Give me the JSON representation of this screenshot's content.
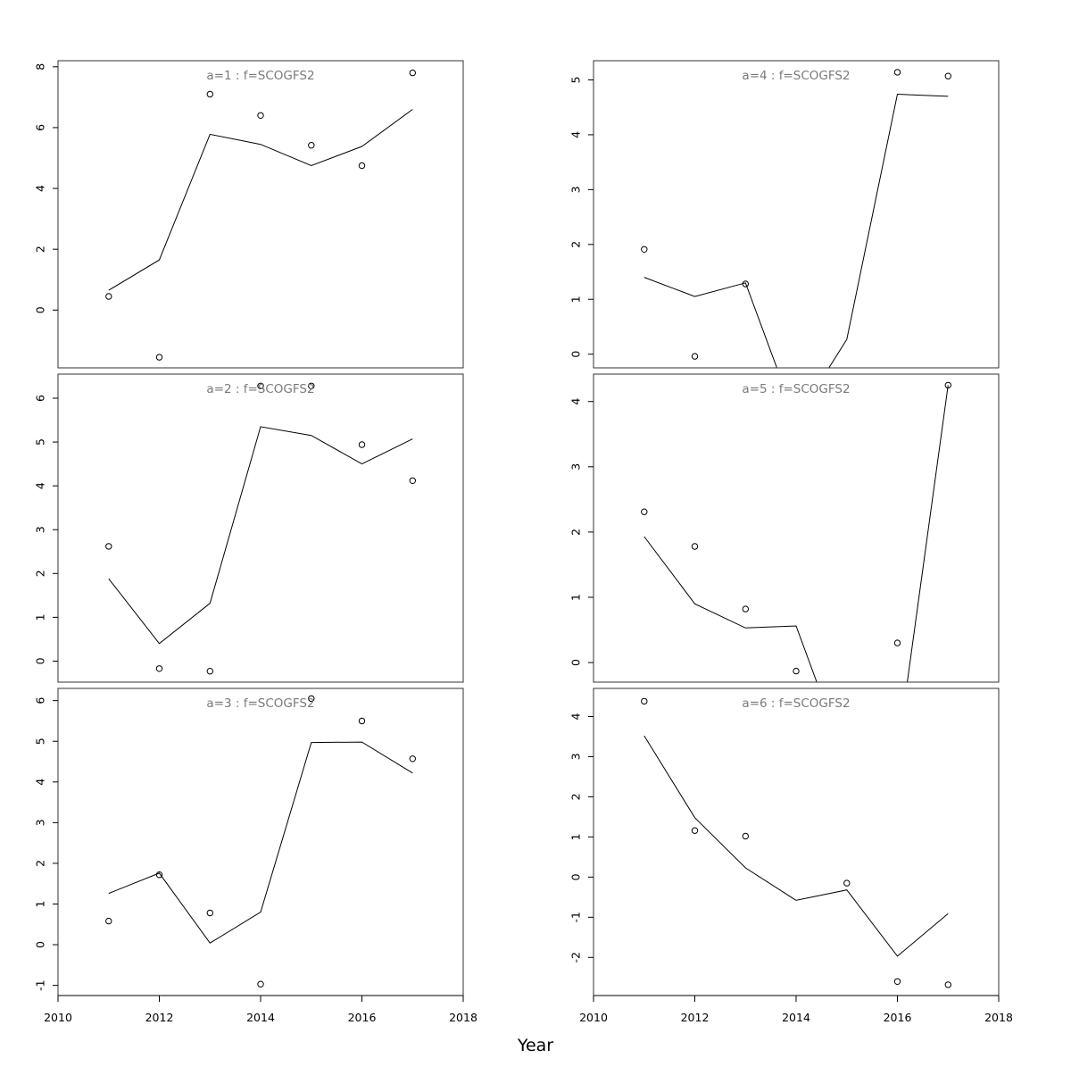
{
  "figure": {
    "xlabel": "Year"
  },
  "chart_data": [
    {
      "type": "line",
      "panel": "a=1",
      "title": "a=1 : f=SCOGFS2",
      "xlim": [
        2010,
        2018
      ],
      "xticks": [
        2010,
        2012,
        2014,
        2016,
        2018
      ],
      "ylim": [
        -1.9,
        8.2
      ],
      "yticks": [
        0,
        2,
        4,
        6,
        8
      ],
      "ytick_labels": [
        "0",
        "2",
        "4",
        "6",
        "8"
      ],
      "fitted": {
        "x": [
          2011,
          2012,
          2013,
          2014,
          2015,
          2016,
          2017
        ],
        "y": [
          0.65,
          1.65,
          5.78,
          5.45,
          4.75,
          5.38,
          6.6
        ]
      },
      "observed": {
        "x": [
          2011,
          2012,
          2013,
          2014,
          2015,
          2016,
          2017
        ],
        "y": [
          0.45,
          -1.55,
          7.1,
          6.4,
          5.42,
          4.75,
          7.8
        ]
      }
    },
    {
      "type": "line",
      "panel": "a=2",
      "title": "a=2 : f=SCOGFS2",
      "xlim": [
        2010,
        2018
      ],
      "xticks": [
        2010,
        2012,
        2014,
        2016,
        2018
      ],
      "ylim": [
        -0.48,
        6.55
      ],
      "yticks": [
        0,
        1,
        2,
        3,
        4,
        5,
        6
      ],
      "ytick_labels": [
        "0",
        "1",
        "2",
        "3",
        "4",
        "5",
        "6"
      ],
      "fitted": {
        "x": [
          2011,
          2012,
          2013,
          2014,
          2015,
          2016,
          2017
        ],
        "y": [
          1.88,
          0.4,
          1.32,
          5.35,
          5.15,
          4.5,
          5.07
        ]
      },
      "observed": {
        "x": [
          2011,
          2012,
          2013,
          2014,
          2015,
          2016,
          2017
        ],
        "y": [
          2.62,
          -0.17,
          -0.23,
          6.28,
          6.28,
          4.94,
          4.12
        ]
      }
    },
    {
      "type": "line",
      "panel": "a=3",
      "title": "a=3 : f=SCOGFS2",
      "xlim": [
        2010,
        2018
      ],
      "xticks": [
        2010,
        2012,
        2014,
        2016,
        2018
      ],
      "ylim": [
        -1.25,
        6.3
      ],
      "yticks": [
        -1,
        0,
        1,
        2,
        3,
        4,
        5,
        6
      ],
      "ytick_labels": [
        "-1",
        "0",
        "1",
        "2",
        "3",
        "4",
        "5",
        "6"
      ],
      "fitted": {
        "x": [
          2011,
          2012,
          2013,
          2014,
          2015,
          2016,
          2017
        ],
        "y": [
          1.26,
          1.76,
          0.04,
          0.8,
          4.97,
          4.98,
          4.22
        ]
      },
      "observed": {
        "x": [
          2011,
          2012,
          2013,
          2014,
          2015,
          2016,
          2017
        ],
        "y": [
          0.58,
          1.72,
          0.78,
          -0.97,
          6.05,
          5.5,
          4.57
        ]
      }
    },
    {
      "type": "line",
      "panel": "a=4",
      "title": "a=4 : f=SCOGFS2",
      "xlim": [
        2010,
        2018
      ],
      "xticks": [
        2010,
        2012,
        2014,
        2016,
        2018
      ],
      "ylim": [
        -0.25,
        5.35
      ],
      "yticks": [
        0,
        1,
        2,
        3,
        4,
        5
      ],
      "ytick_labels": [
        "0",
        "1",
        "2",
        "3",
        "4",
        "5"
      ],
      "fitted": {
        "x": [
          2011,
          2012,
          2013,
          2014,
          2015,
          2016,
          2017
        ],
        "y": [
          1.4,
          1.05,
          1.3,
          -1.2,
          0.27,
          4.74,
          4.7
        ]
      },
      "observed": {
        "x": [
          2011,
          2012,
          2013,
          2016,
          2017
        ],
        "y": [
          1.91,
          -0.04,
          1.28,
          5.14,
          5.07
        ]
      }
    },
    {
      "type": "line",
      "panel": "a=5",
      "title": "a=5 : f=SCOGFS2",
      "xlim": [
        2010,
        2018
      ],
      "xticks": [
        2010,
        2012,
        2014,
        2016,
        2018
      ],
      "ylim": [
        -0.3,
        4.42
      ],
      "yticks": [
        0,
        1,
        2,
        3,
        4
      ],
      "ytick_labels": [
        "0",
        "1",
        "2",
        "3",
        "4"
      ],
      "fitted": {
        "x": [
          2011,
          2012,
          2013,
          2014,
          2015,
          2016,
          2017
        ],
        "y": [
          1.93,
          0.9,
          0.53,
          0.56,
          -1.55,
          -1.4,
          4.25
        ]
      },
      "observed": {
        "x": [
          2011,
          2012,
          2013,
          2014,
          2016,
          2017
        ],
        "y": [
          2.31,
          1.78,
          0.82,
          -0.13,
          0.3,
          4.25
        ]
      }
    },
    {
      "type": "line",
      "panel": "a=6",
      "title": "a=6 : f=SCOGFS2",
      "xlim": [
        2010,
        2018
      ],
      "xticks": [
        2010,
        2012,
        2014,
        2016,
        2018
      ],
      "ylim": [
        -2.95,
        4.7
      ],
      "yticks": [
        -2,
        -1,
        0,
        1,
        2,
        3,
        4
      ],
      "ytick_labels": [
        "-2",
        "-1",
        "0",
        "1",
        "2",
        "3",
        "4"
      ],
      "fitted": {
        "x": [
          2011,
          2012,
          2013,
          2014,
          2015,
          2016,
          2017
        ],
        "y": [
          3.52,
          1.48,
          0.23,
          -0.58,
          -0.32,
          -1.97,
          -0.91
        ]
      },
      "observed": {
        "x": [
          2011,
          2012,
          2013,
          2015,
          2016,
          2017
        ],
        "y": [
          4.38,
          1.16,
          1.02,
          -0.15,
          -2.6,
          -2.68
        ]
      }
    }
  ]
}
